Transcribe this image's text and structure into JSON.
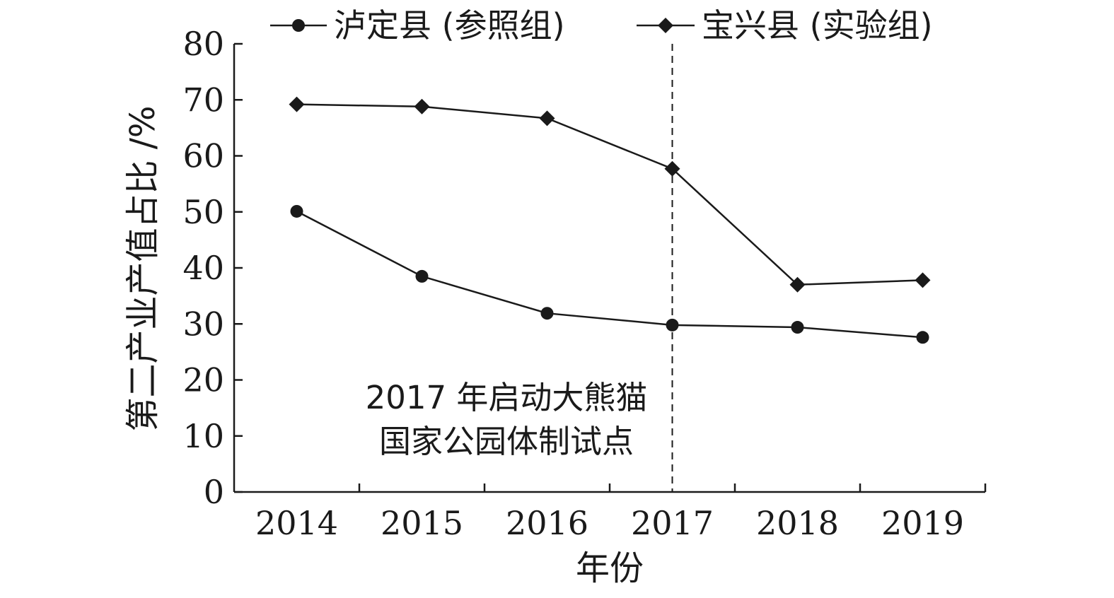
{
  "chart_data": {
    "type": "line",
    "x": [
      "2014",
      "2015",
      "2016",
      "2017",
      "2018",
      "2019"
    ],
    "xlabel": "年份",
    "ylabel": "第二产业产值占比 /%",
    "ylim": [
      0,
      80
    ],
    "yticks": [
      "0",
      "10",
      "20",
      "30",
      "40",
      "50",
      "60",
      "70",
      "80"
    ],
    "series": [
      {
        "name": "泸定县 (参照组)",
        "marker": "circle",
        "values": [
          50.1,
          38.5,
          31.9,
          29.8,
          29.4,
          27.6
        ]
      },
      {
        "name": "宝兴县 (实验组)",
        "marker": "diamond",
        "values": [
          69.2,
          68.8,
          66.7,
          57.7,
          37.0,
          37.8
        ]
      }
    ],
    "reference_line": {
      "x": "2017",
      "style": "dashed"
    },
    "annotation": [
      "2017 年启动大熊猫",
      "国家公园体制试点"
    ],
    "legend_position": "top",
    "grid": false,
    "colors": {
      "line": "#1a1a1a"
    }
  }
}
